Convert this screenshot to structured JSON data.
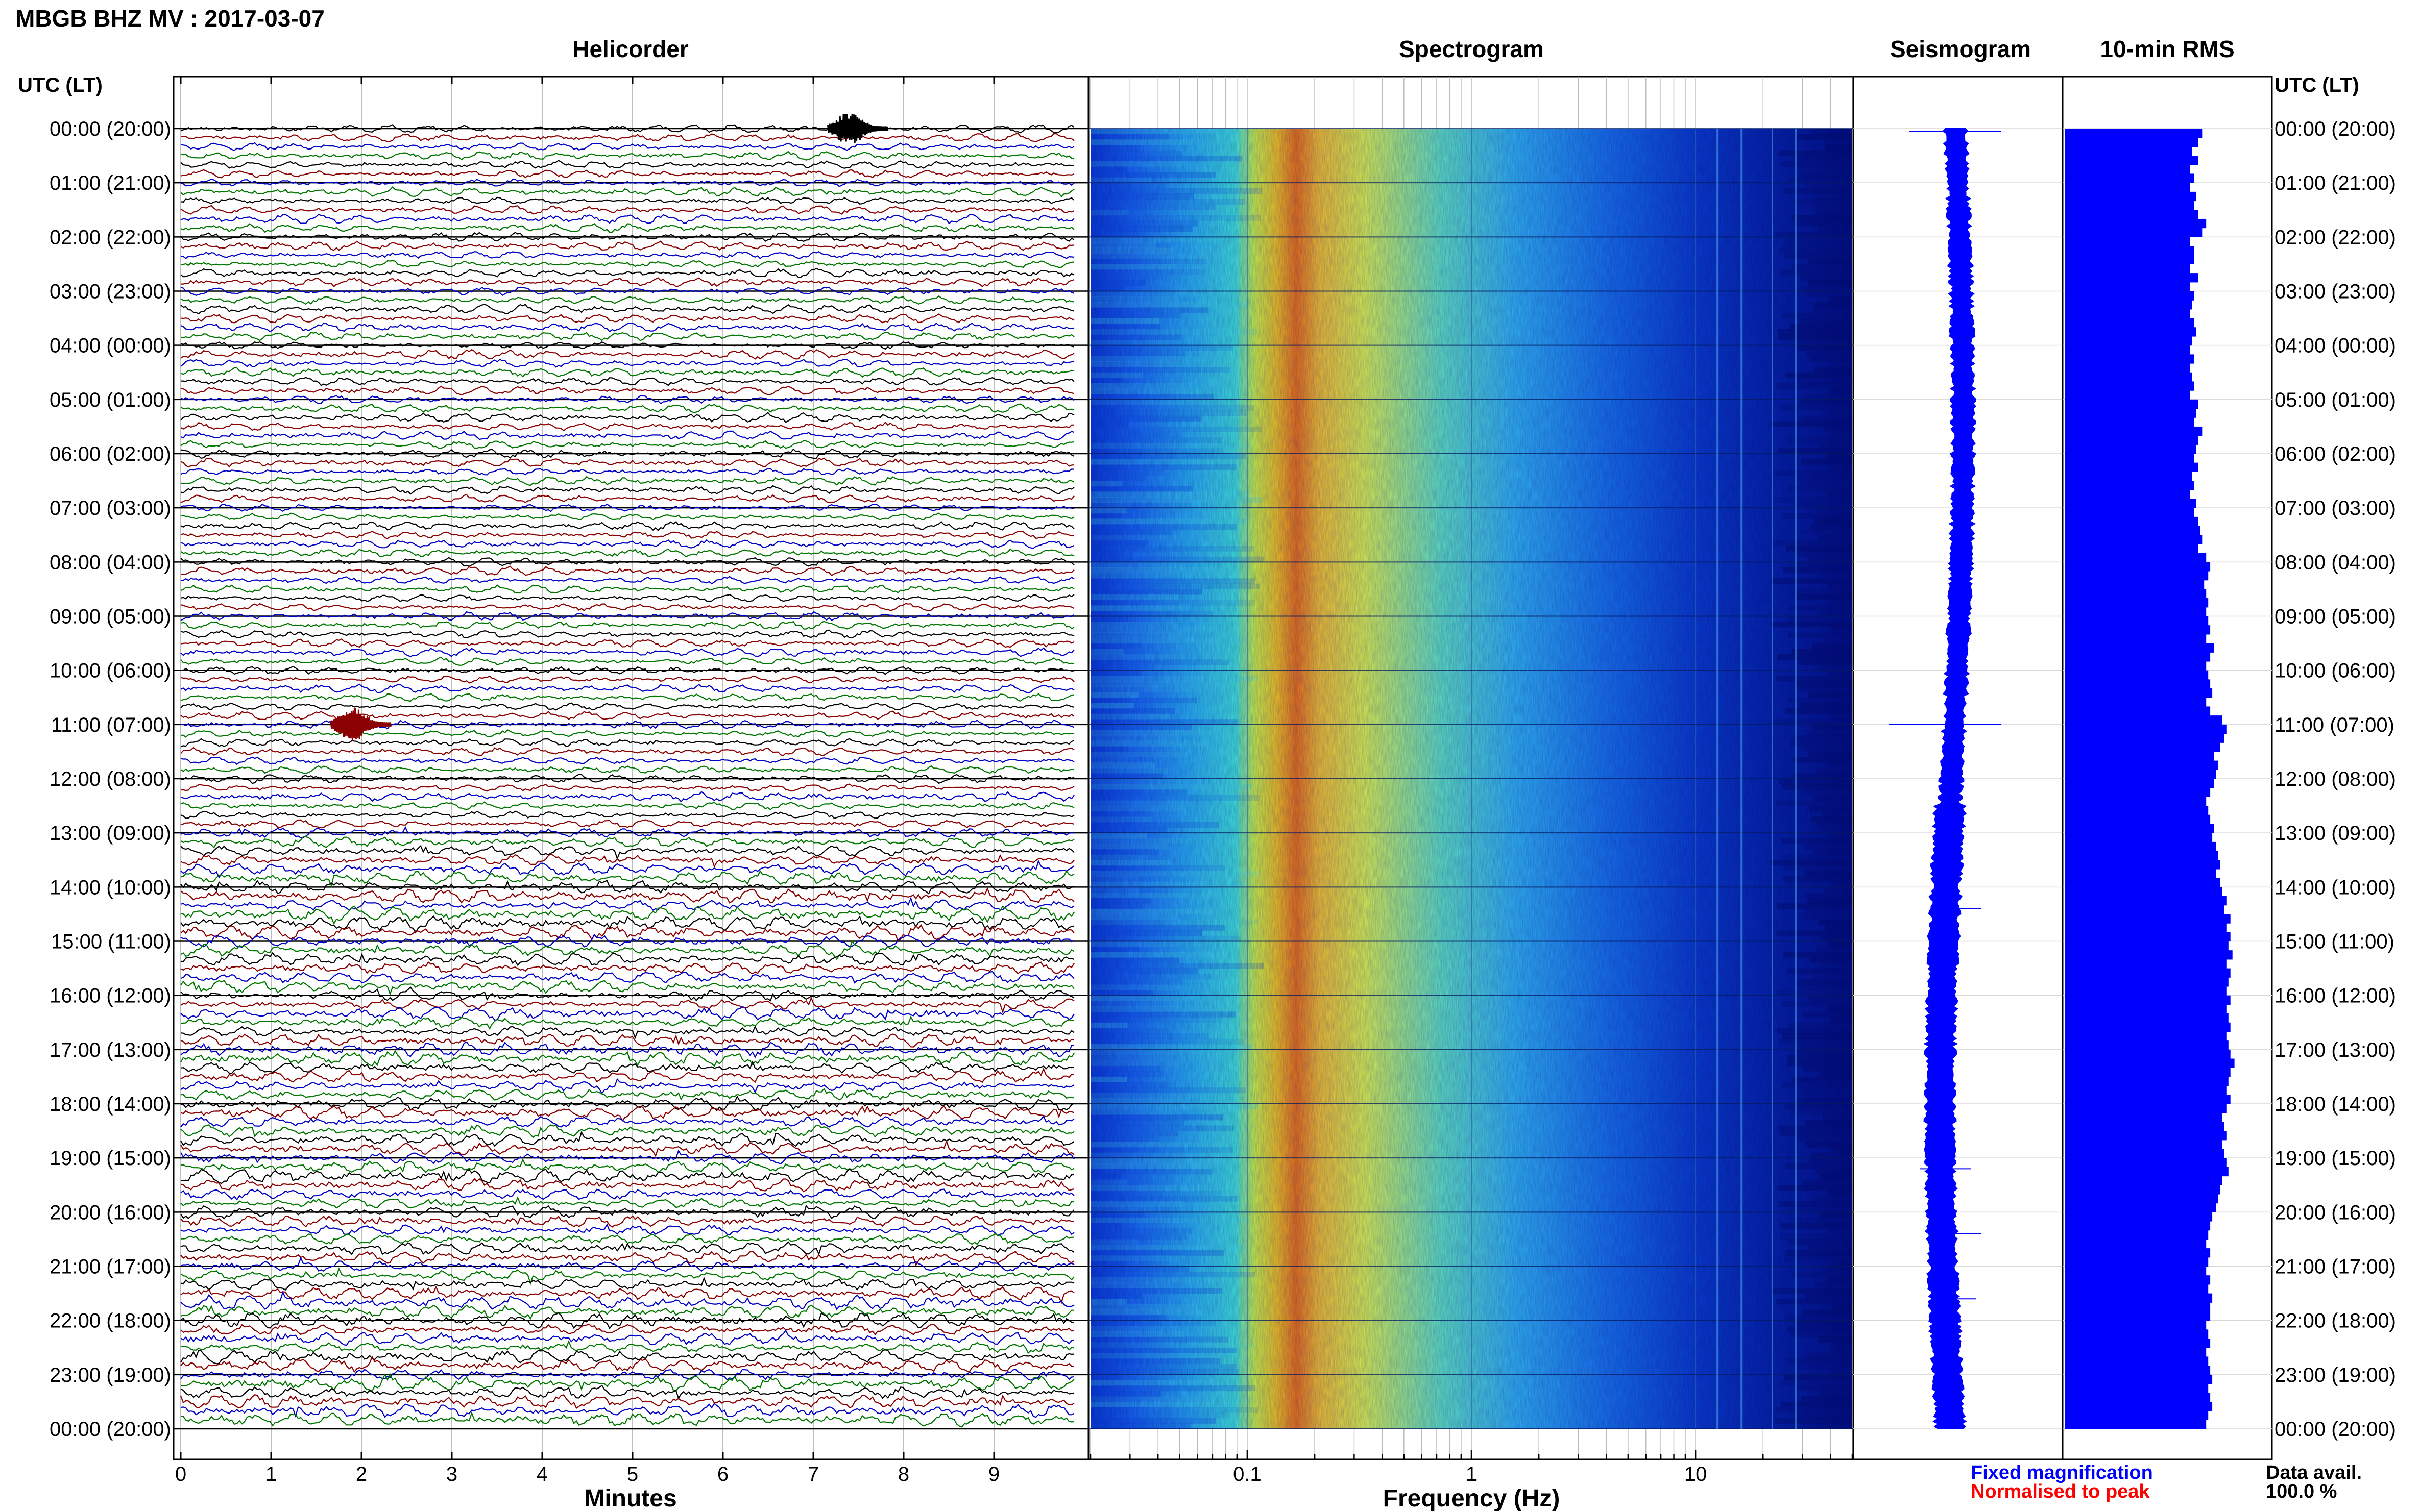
{
  "page": {
    "title": "MBGB BHZ MV : 2017-03-07",
    "utc_label": "UTC (LT)"
  },
  "panels": {
    "helicorder": "Helicorder",
    "spectrogram": "Spectrogram",
    "seismogram": "Seismogram",
    "rms": "10-min RMS"
  },
  "footer": {
    "minutes_label": "Minutes",
    "frequency_label": "Frequency (Hz)",
    "fixed_magnification": "Fixed magnification",
    "normalised_to_peak": "Normalised to peak",
    "data_avail_label": "Data avail.",
    "data_avail_value": "100.0 %"
  },
  "colors": {
    "fixed_magnification": "#0000ff",
    "normalised_to_peak": "#ff0000",
    "trace_cycle": [
      "#000000",
      "#8b0000",
      "#0000c8",
      "#007700"
    ],
    "rms_bar": "#0000ff",
    "seismogram": "#0000ff"
  },
  "chart_data": {
    "type": "heatmap",
    "time_labels": [
      "00:00 (20:00)",
      "01:00 (21:00)",
      "02:00 (22:00)",
      "03:00 (23:00)",
      "04:00 (00:00)",
      "05:00 (01:00)",
      "06:00 (02:00)",
      "07:00 (03:00)",
      "08:00 (04:00)",
      "09:00 (05:00)",
      "10:00 (06:00)",
      "11:00 (07:00)",
      "12:00 (08:00)",
      "13:00 (09:00)",
      "14:00 (10:00)",
      "15:00 (11:00)",
      "16:00 (12:00)",
      "17:00 (13:00)",
      "18:00 (14:00)",
      "19:00 (15:00)",
      "20:00 (16:00)",
      "21:00 (17:00)",
      "22:00 (18:00)",
      "23:00 (19:00)",
      "00:00 (20:00)"
    ],
    "helicorder": {
      "x_ticks": [
        "0",
        "1",
        "2",
        "3",
        "4",
        "5",
        "6",
        "7",
        "8",
        "9"
      ],
      "xlim_minutes": [
        0,
        10
      ],
      "rows": 144,
      "rows_per_hour": 6,
      "events": [
        {
          "row": 0,
          "minute": 7.5,
          "color": "black"
        },
        {
          "row": 66,
          "minute": 2.0,
          "color": "darkred"
        }
      ]
    },
    "spectrogram": {
      "x_scale": "log",
      "xlim_hz": [
        0.02,
        50
      ],
      "x_ticks": [
        "0.1",
        "1",
        "10"
      ],
      "x_tick_values": [
        0.1,
        1,
        10
      ],
      "peak_band_hz": [
        0.15,
        0.35
      ]
    },
    "rms": {
      "relative_values": [
        0.68,
        0.66,
        0.63,
        0.66,
        0.62,
        0.64,
        0.62,
        0.65,
        0.64,
        0.66,
        0.7,
        0.68,
        0.62,
        0.64,
        0.64,
        0.62,
        0.66,
        0.62,
        0.64,
        0.63,
        0.62,
        0.64,
        0.65,
        0.63,
        0.62,
        0.64,
        0.62,
        0.63,
        0.64,
        0.62,
        0.66,
        0.65,
        0.64,
        0.68,
        0.66,
        0.65,
        0.64,
        0.66,
        0.63,
        0.64,
        0.62,
        0.65,
        0.64,
        0.66,
        0.67,
        0.68,
        0.66,
        0.7,
        0.72,
        0.71,
        0.69,
        0.7,
        0.71,
        0.7,
        0.71,
        0.72,
        0.7,
        0.74,
        0.72,
        0.7,
        0.71,
        0.72,
        0.73,
        0.7,
        0.72,
        0.78,
        0.8,
        0.79,
        0.77,
        0.74,
        0.76,
        0.75,
        0.74,
        0.72,
        0.7,
        0.71,
        0.72,
        0.74,
        0.73,
        0.75,
        0.76,
        0.77,
        0.75,
        0.77,
        0.78,
        0.8,
        0.79,
        0.82,
        0.8,
        0.82,
        0.81,
        0.83,
        0.8,
        0.82,
        0.81,
        0.8,
        0.82,
        0.8,
        0.81,
        0.82,
        0.8,
        0.81,
        0.82,
        0.84,
        0.82,
        0.81,
        0.8,
        0.82,
        0.8,
        0.78,
        0.79,
        0.8,
        0.78,
        0.79,
        0.8,
        0.81,
        0.78,
        0.77,
        0.76,
        0.75,
        0.73,
        0.72,
        0.71,
        0.7,
        0.72,
        0.71,
        0.7,
        0.72,
        0.71,
        0.73,
        0.72,
        0.72,
        0.7,
        0.71,
        0.72,
        0.7,
        0.71,
        0.72,
        0.73,
        0.71,
        0.72,
        0.73,
        0.71,
        0.7
      ]
    }
  }
}
